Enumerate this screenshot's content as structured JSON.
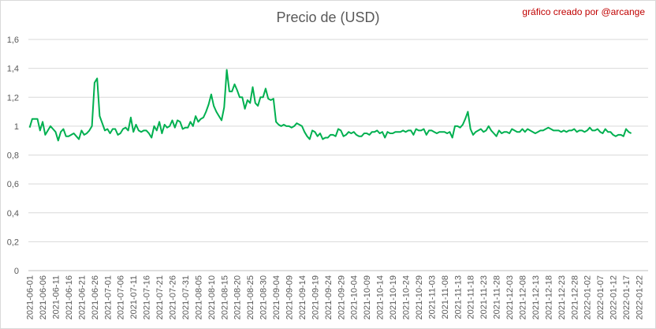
{
  "credit": "gráfico creado por @arcange",
  "chart_data": {
    "type": "line",
    "title": "Precio de (USD)",
    "xlabel": "",
    "ylabel": "",
    "ylim": [
      0,
      1.6
    ],
    "yticks": [
      "0",
      "0,2",
      "0,4",
      "0,6",
      "0,8",
      "1",
      "1,2",
      "1,4",
      "1,6"
    ],
    "grid": true,
    "legend": "none",
    "line_color": "#00b050",
    "x_start": "2021-06-01",
    "x_end": "2022-01-25",
    "x_tick_labels": [
      "2021-06-01",
      "2021-06-06",
      "2021-06-11",
      "2021-06-16",
      "2021-06-21",
      "2021-06-26",
      "2021-07-01",
      "2021-07-06",
      "2021-07-11",
      "2021-07-16",
      "2021-07-21",
      "2021-07-26",
      "2021-07-31",
      "2021-08-05",
      "2021-08-10",
      "2021-08-15",
      "2021-08-20",
      "2021-08-25",
      "2021-08-30",
      "2021-09-04",
      "2021-09-09",
      "2021-09-14",
      "2021-09-19",
      "2021-09-24",
      "2021-09-29",
      "2021-10-04",
      "2021-10-09",
      "2021-10-14",
      "2021-10-19",
      "2021-10-24",
      "2021-10-29",
      "2021-11-03",
      "2021-11-08",
      "2021-11-13",
      "2021-11-18",
      "2021-11-23",
      "2021-11-28",
      "2021-12-03",
      "2021-12-08",
      "2021-12-13",
      "2021-12-18",
      "2021-12-23",
      "2021-12-28",
      "2022-01-02",
      "2022-01-07",
      "2022-01-12",
      "2022-01-17",
      "2022-01-22"
    ],
    "series": [
      {
        "values": [
          0.99,
          1.05,
          1.05,
          1.05,
          0.97,
          1.03,
          0.94,
          0.97,
          1.0,
          0.98,
          0.96,
          0.9,
          0.96,
          0.98,
          0.93,
          0.93,
          0.94,
          0.95,
          0.93,
          0.91,
          0.97,
          0.94,
          0.95,
          0.97,
          1.0,
          1.3,
          1.33,
          1.07,
          1.02,
          0.97,
          0.98,
          0.95,
          0.98,
          0.98,
          0.94,
          0.95,
          0.98,
          0.99,
          0.97,
          1.06,
          0.96,
          1.01,
          0.97,
          0.96,
          0.97,
          0.97,
          0.95,
          0.92,
          1.0,
          0.97,
          1.03,
          0.95,
          1.01,
          0.99,
          1.0,
          1.04,
          0.99,
          1.04,
          1.03,
          0.98,
          0.99,
          0.99,
          1.03,
          1.0,
          1.07,
          1.03,
          1.05,
          1.06,
          1.1,
          1.15,
          1.22,
          1.14,
          1.1,
          1.07,
          1.04,
          1.13,
          1.39,
          1.24,
          1.24,
          1.29,
          1.25,
          1.2,
          1.2,
          1.12,
          1.18,
          1.16,
          1.27,
          1.16,
          1.14,
          1.2,
          1.2,
          1.26,
          1.19,
          1.18,
          1.19,
          1.03,
          1.01,
          1.0,
          1.01,
          1.0,
          1.0,
          0.99,
          1.0,
          1.02,
          1.01,
          1.0,
          0.96,
          0.93,
          0.91,
          0.97,
          0.96,
          0.93,
          0.95,
          0.91,
          0.92,
          0.92,
          0.94,
          0.94,
          0.93,
          0.98,
          0.97,
          0.93,
          0.94,
          0.96,
          0.95,
          0.96,
          0.94,
          0.93,
          0.93,
          0.95,
          0.95,
          0.94,
          0.96,
          0.96,
          0.97,
          0.95,
          0.96,
          0.92,
          0.96,
          0.95,
          0.95,
          0.96,
          0.96,
          0.96,
          0.97,
          0.96,
          0.97,
          0.97,
          0.94,
          0.98,
          0.97,
          0.97,
          0.98,
          0.94,
          0.97,
          0.97,
          0.96,
          0.95,
          0.96,
          0.96,
          0.96,
          0.95,
          0.96,
          0.92,
          1.0,
          1.0,
          0.99,
          1.01,
          1.05,
          1.1,
          0.98,
          0.94,
          0.96,
          0.97,
          0.98,
          0.96,
          0.97,
          1.0,
          0.97,
          0.95,
          0.93,
          0.97,
          0.95,
          0.96,
          0.96,
          0.95,
          0.98,
          0.97,
          0.96,
          0.96,
          0.98,
          0.96,
          0.98,
          0.97,
          0.96,
          0.95,
          0.96,
          0.97,
          0.97,
          0.98,
          0.99,
          0.98,
          0.97,
          0.97,
          0.97,
          0.96,
          0.97,
          0.96,
          0.97,
          0.97,
          0.98,
          0.96,
          0.97,
          0.97,
          0.96,
          0.97,
          0.99,
          0.97,
          0.97,
          0.98,
          0.96,
          0.95,
          0.98,
          0.96,
          0.96,
          0.94,
          0.93,
          0.94,
          0.94,
          0.93,
          0.98,
          0.96,
          0.95
        ]
      }
    ]
  }
}
